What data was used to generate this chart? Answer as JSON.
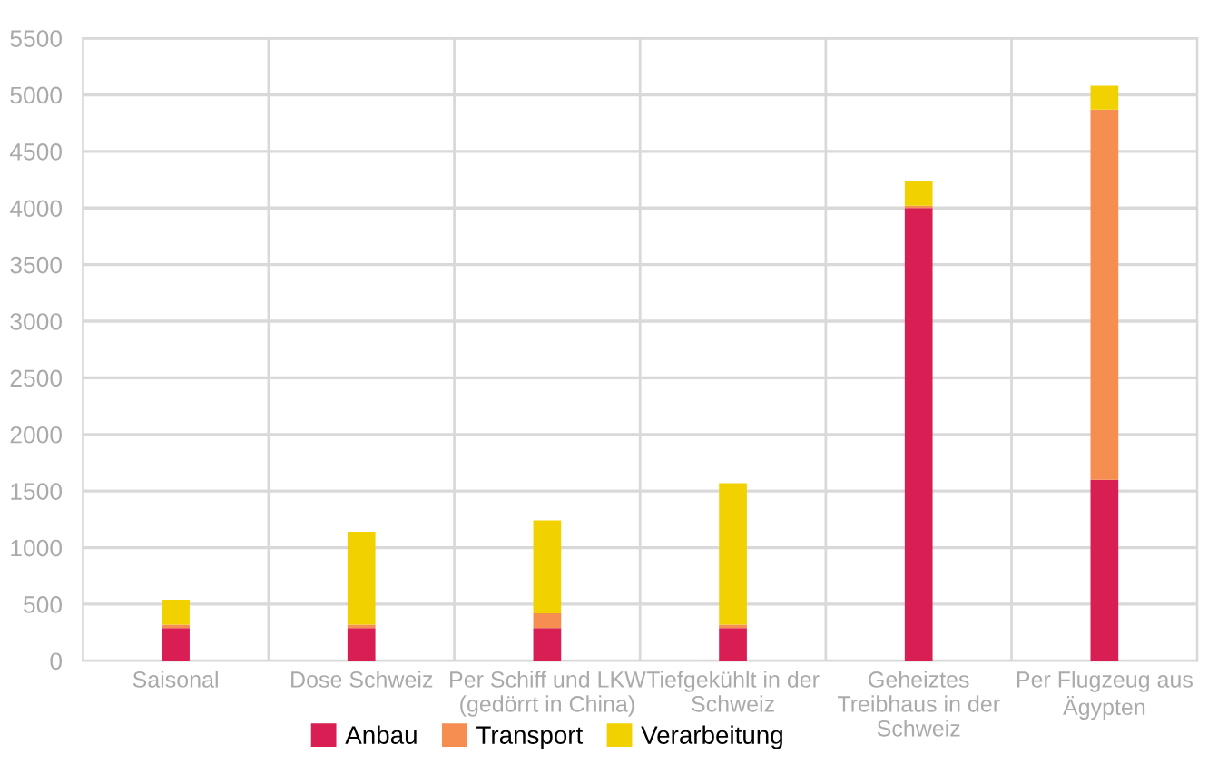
{
  "chart_data": {
    "type": "bar",
    "stacked": true,
    "categories": [
      "Saisonal",
      "Dose Schweiz",
      "Per Schiff und LKW\n(gedörrt in China)",
      "Tiefgekühlt in der\nSchweiz",
      "Geheiztes\nTreibhaus in der\nSchweiz",
      "Per Flugzeug aus\nÄgypten"
    ],
    "series": [
      {
        "name": "Anbau",
        "color": "#d81e52",
        "values": [
          290,
          290,
          290,
          290,
          4000,
          1600
        ]
      },
      {
        "name": "Transport",
        "color": "#f68d51",
        "values": [
          30,
          30,
          130,
          30,
          20,
          3270
        ]
      },
      {
        "name": "Verarbeitung",
        "color": "#f2d100",
        "values": [
          220,
          820,
          820,
          1250,
          220,
          210
        ]
      }
    ],
    "ylim": [
      0,
      5500
    ],
    "yticks": [
      0,
      500,
      1000,
      1500,
      2000,
      2500,
      3000,
      3500,
      4000,
      4500,
      5000,
      5500
    ],
    "grid": true,
    "legend": "bottom"
  }
}
